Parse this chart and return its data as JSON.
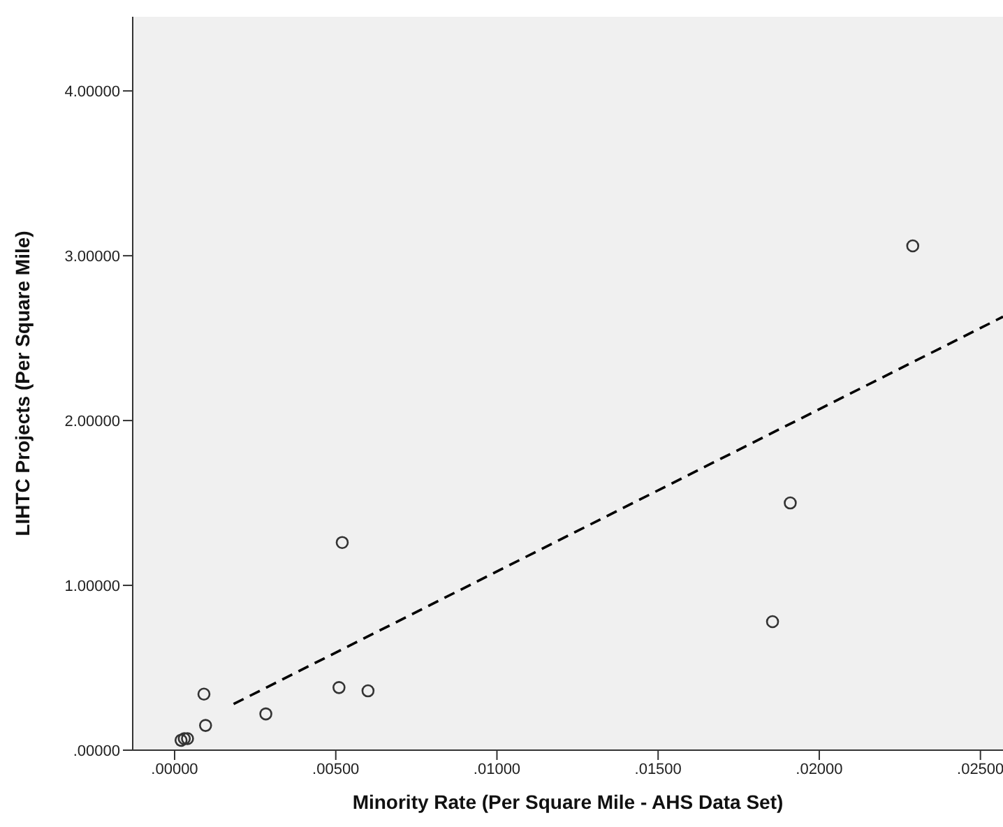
{
  "chart_data": {
    "type": "scatter",
    "xlabel": "Minority Rate (Per Square Mile - AHS Data Set)",
    "ylabel": "LIHTC Projects (Per Square Mile)",
    "xlim": [
      -0.0013,
      0.0257
    ],
    "ylim": [
      0,
      4.45
    ],
    "xticks": [
      {
        "value": 0,
        "label": ".00000"
      },
      {
        "value": 0.005,
        "label": ".00500"
      },
      {
        "value": 0.01,
        "label": ".01000"
      },
      {
        "value": 0.015,
        "label": ".01500"
      },
      {
        "value": 0.02,
        "label": ".02000"
      },
      {
        "value": 0.025,
        "label": ".02500"
      }
    ],
    "yticks": [
      {
        "value": 0,
        "label": ".00000"
      },
      {
        "value": 1,
        "label": "1.00000"
      },
      {
        "value": 2,
        "label": "2.00000"
      },
      {
        "value": 3,
        "label": "3.00000"
      },
      {
        "value": 4,
        "label": "4.00000"
      }
    ],
    "grid": false,
    "legend": false,
    "marker": "circle",
    "series": [
      {
        "color": "#333333",
        "x": [
          0.0002,
          0.0003,
          0.0004,
          0.00091,
          0.00096,
          0.00283,
          0.0051,
          0.0052,
          0.006,
          0.01855,
          0.0191,
          0.0229
        ],
        "values": [
          0.06,
          0.07,
          0.07,
          0.34,
          0.15,
          0.22,
          0.38,
          1.26,
          0.36,
          0.78,
          1.5,
          3.06
        ]
      },
      {
        "type": "line",
        "color": "#000000",
        "line_style": "dashed",
        "marker": "none",
        "x": [
          0.00183,
          0.0257
        ],
        "values": [
          0.28,
          2.63
        ]
      }
    ]
  }
}
